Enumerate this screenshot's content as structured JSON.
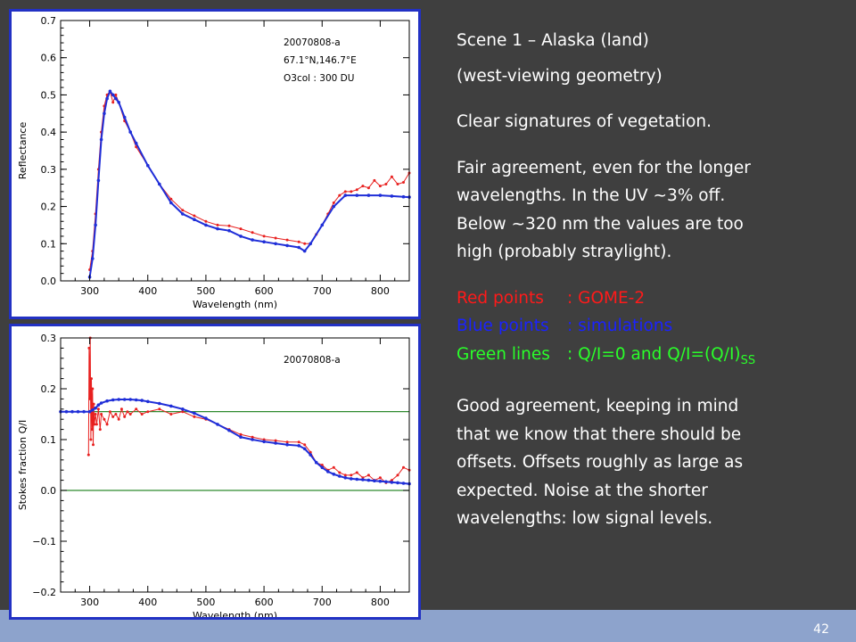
{
  "slide": {
    "page_number": "42",
    "title": "Scene 1 – Alaska (land)",
    "subtitle": "(west-viewing geometry)",
    "para1": "Clear signatures of vegetation.",
    "para2_lines": [
      "Fair agreement, even for the longer",
      "wavelengths. In the UV ~3% off.",
      "Below ~320 nm the values are too",
      "high (probably straylight)."
    ],
    "legend": [
      {
        "label": "Red points",
        "sep": ":",
        "desc": "GOME-2",
        "color": "#ff1a1a"
      },
      {
        "label": "Blue points",
        "sep": ":",
        "desc": "simulations",
        "color": "#1a22ff"
      },
      {
        "label": "Green lines",
        "sep": ":",
        "desc": "Q/I=0 and Q/I=(Q/I)",
        "desc_sub": "SS",
        "color": "#2aff2a"
      }
    ],
    "para3_lines": [
      "Good agreement, keeping in mind",
      "that we know that there should be",
      "offsets. Offsets roughly as large as",
      "expected. Noise at the shorter",
      "wavelengths: low signal levels."
    ]
  },
  "chart_data": [
    {
      "type": "line",
      "xlabel": "Wavelength (nm)",
      "ylabel": "Reflectance",
      "xlim": [
        250,
        850
      ],
      "ylim": [
        0.0,
        0.7
      ],
      "xticks": [
        300,
        400,
        500,
        600,
        700,
        800
      ],
      "yticks": [
        0.0,
        0.1,
        0.2,
        0.3,
        0.4,
        0.5,
        0.6,
        0.7
      ],
      "annotations": [
        "20070808-a",
        "67.1°N,146.7°E",
        "O3col : 300 DU"
      ],
      "series": [
        {
          "color": "#e8201f",
          "x": [
            300,
            305,
            310,
            315,
            320,
            325,
            330,
            335,
            340,
            345,
            350,
            360,
            370,
            380,
            400,
            420,
            440,
            460,
            480,
            500,
            520,
            540,
            560,
            580,
            600,
            620,
            640,
            660,
            670,
            680,
            690,
            700,
            710,
            720,
            730,
            740,
            750,
            760,
            770,
            780,
            790,
            800,
            810,
            820,
            830,
            840,
            850
          ],
          "y": [
            0.03,
            0.08,
            0.18,
            0.3,
            0.4,
            0.47,
            0.5,
            0.51,
            0.48,
            0.5,
            0.48,
            0.43,
            0.4,
            0.36,
            0.31,
            0.26,
            0.22,
            0.19,
            0.175,
            0.16,
            0.15,
            0.148,
            0.14,
            0.13,
            0.12,
            0.115,
            0.11,
            0.105,
            0.1,
            0.1,
            0.125,
            0.15,
            0.18,
            0.21,
            0.23,
            0.24,
            0.24,
            0.245,
            0.255,
            0.25,
            0.27,
            0.255,
            0.26,
            0.28,
            0.26,
            0.265,
            0.29
          ]
        },
        {
          "color": "#1f2ed8",
          "x": [
            300,
            305,
            310,
            315,
            320,
            325,
            330,
            335,
            340,
            345,
            350,
            360,
            370,
            380,
            400,
            420,
            440,
            460,
            480,
            500,
            520,
            540,
            560,
            580,
            600,
            620,
            640,
            660,
            670,
            680,
            700,
            720,
            740,
            760,
            780,
            800,
            820,
            840,
            850
          ],
          "y": [
            0.01,
            0.06,
            0.15,
            0.27,
            0.38,
            0.45,
            0.49,
            0.51,
            0.5,
            0.49,
            0.48,
            0.44,
            0.4,
            0.37,
            0.31,
            0.26,
            0.21,
            0.18,
            0.165,
            0.15,
            0.14,
            0.135,
            0.12,
            0.11,
            0.105,
            0.1,
            0.095,
            0.09,
            0.08,
            0.1,
            0.15,
            0.2,
            0.23,
            0.23,
            0.23,
            0.23,
            0.228,
            0.226,
            0.225
          ]
        }
      ]
    },
    {
      "type": "line",
      "xlabel": "Wavelength (nm)",
      "ylabel": "Stokes fraction Q/I",
      "xlim": [
        250,
        850
      ],
      "ylim": [
        -0.2,
        0.3
      ],
      "xticks": [
        300,
        400,
        500,
        600,
        700,
        800
      ],
      "yticks": [
        -0.2,
        -0.1,
        0.0,
        0.1,
        0.2,
        0.3
      ],
      "annotations": [
        "20070808-a"
      ],
      "hlines": [
        {
          "y": 0.0,
          "color": "#2e8b2e"
        },
        {
          "y": 0.155,
          "color": "#2e8b2e"
        }
      ],
      "series": [
        {
          "color": "#e8201f",
          "x": [
            298,
            299,
            300,
            301,
            302,
            303,
            304,
            305,
            306,
            307,
            308,
            310,
            312,
            315,
            318,
            320,
            325,
            330,
            335,
            340,
            345,
            350,
            355,
            360,
            365,
            370,
            380,
            390,
            400,
            420,
            440,
            460,
            480,
            500,
            520,
            540,
            560,
            580,
            600,
            620,
            640,
            660,
            670,
            680,
            690,
            700,
            710,
            720,
            730,
            740,
            750,
            760,
            770,
            780,
            790,
            800,
            810,
            820,
            830,
            840,
            850
          ],
          "y": [
            0.07,
            0.28,
            0.18,
            0.3,
            0.1,
            0.22,
            0.12,
            0.2,
            0.09,
            0.17,
            0.13,
            0.15,
            0.13,
            0.16,
            0.12,
            0.15,
            0.14,
            0.13,
            0.155,
            0.145,
            0.15,
            0.14,
            0.16,
            0.145,
            0.155,
            0.15,
            0.16,
            0.15,
            0.155,
            0.16,
            0.15,
            0.155,
            0.145,
            0.14,
            0.13,
            0.12,
            0.11,
            0.105,
            0.1,
            0.098,
            0.095,
            0.095,
            0.09,
            0.075,
            0.055,
            0.05,
            0.04,
            0.045,
            0.035,
            0.03,
            0.03,
            0.035,
            0.025,
            0.03,
            0.02,
            0.025,
            0.015,
            0.02,
            0.03,
            0.045,
            0.04
          ]
        },
        {
          "color": "#1f2ed8",
          "x": [
            250,
            260,
            270,
            280,
            290,
            300,
            305,
            310,
            315,
            320,
            330,
            340,
            350,
            360,
            370,
            380,
            390,
            400,
            420,
            440,
            460,
            480,
            500,
            520,
            540,
            560,
            580,
            600,
            620,
            640,
            660,
            670,
            680,
            690,
            700,
            710,
            720,
            730,
            740,
            750,
            760,
            770,
            780,
            790,
            800,
            810,
            820,
            830,
            840,
            850
          ],
          "y": [
            0.155,
            0.155,
            0.155,
            0.155,
            0.155,
            0.155,
            0.158,
            0.162,
            0.168,
            0.172,
            0.176,
            0.178,
            0.179,
            0.179,
            0.179,
            0.178,
            0.177,
            0.175,
            0.171,
            0.166,
            0.16,
            0.152,
            0.142,
            0.13,
            0.118,
            0.105,
            0.1,
            0.096,
            0.093,
            0.09,
            0.088,
            0.082,
            0.07,
            0.055,
            0.045,
            0.037,
            0.032,
            0.028,
            0.025,
            0.023,
            0.022,
            0.021,
            0.02,
            0.019,
            0.018,
            0.017,
            0.016,
            0.015,
            0.014,
            0.013
          ]
        }
      ]
    }
  ]
}
